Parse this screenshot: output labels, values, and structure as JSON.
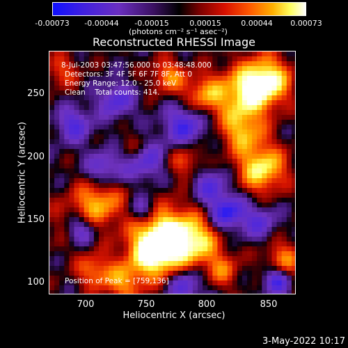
{
  "colorbar": {
    "ticks": [
      "-0.00073",
      "-0.00044",
      "-0.00015",
      "0.00015",
      "0.00044",
      "0.00073"
    ],
    "units": "(photons cm⁻² s⁻¹ asec⁻²)"
  },
  "chart_data": {
    "type": "heatmap",
    "title": "Reconstructed RHESSI Image",
    "xlabel": "Heliocentric X (arcsec)",
    "ylabel": "Heliocentric Y (arcsec)",
    "xlim": [
      675,
      867
    ],
    "ylim": [
      92,
      283
    ],
    "xticks": [
      "700",
      "750",
      "800",
      "850"
    ],
    "yticks": [
      "250",
      "200",
      "150",
      "100"
    ],
    "clim": [
      -0.00073,
      0.00073
    ],
    "peak": [
      759,
      136
    ]
  },
  "annotations": {
    "time": "8-Jul-2003 03:47:56.000 to 03:48:48.000",
    "detectors": "Detectors: 3F 4F 5F 6F 7F 8F, Att 0",
    "energy": "Energy Range: 12.0 - 25.0 keV",
    "clean": "Clean    Total counts: 414.",
    "peak": "Position of Peak = [759,136]"
  },
  "timestamp": "3-May-2022 10:17"
}
